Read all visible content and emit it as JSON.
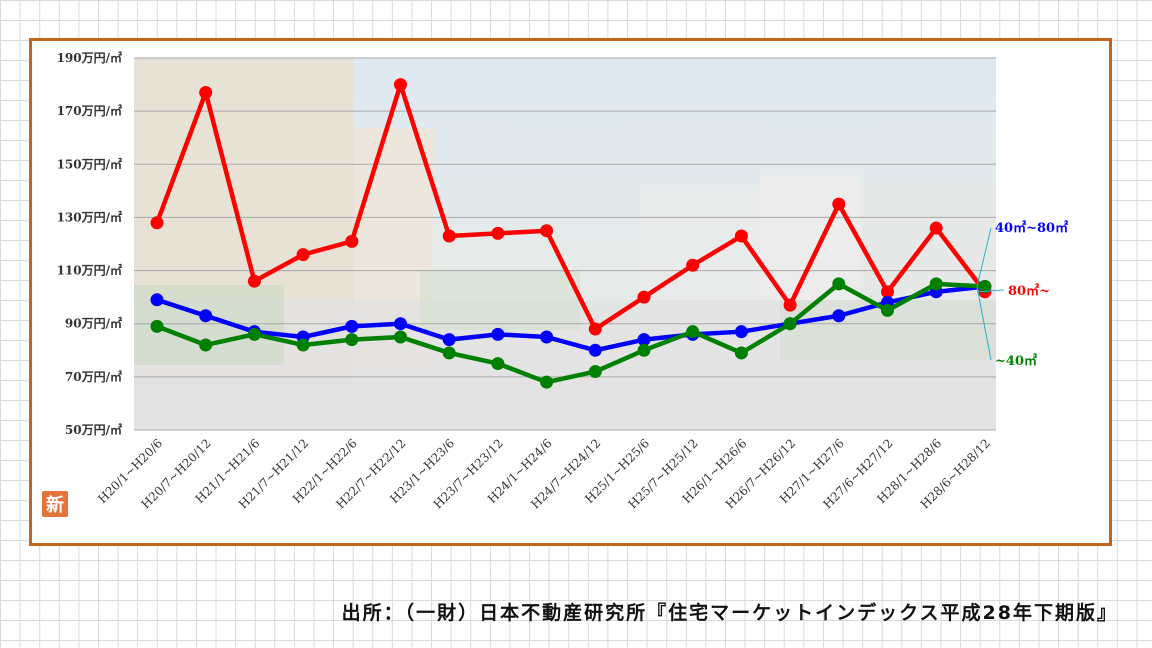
{
  "chart_data": {
    "type": "line",
    "title": "",
    "xlabel": "",
    "ylabel": "",
    "ylim": [
      50,
      190
    ],
    "yticks": [
      50,
      70,
      90,
      110,
      130,
      150,
      170,
      190
    ],
    "ytick_labels": [
      "50万円/㎡",
      "70万円/㎡",
      "90万円/㎡",
      "110万円/㎡",
      "130万円/㎡",
      "150万円/㎡",
      "170万円/㎡",
      "190万円/㎡"
    ],
    "grid": "horizontal",
    "categories": [
      "H20/1~H20/6",
      "H20/7~H20/12",
      "H21/1~H21/6",
      "H21/7~H21/12",
      "H22/1~H22/6",
      "H22/7~H22/12",
      "H23/1~H23/6",
      "H23/7~H23/12",
      "H24/1~H24/6",
      "H24/7~H24/12",
      "H25/1~H25/6",
      "H25/7~H25/12",
      "H26/1~H26/6",
      "H26/7~H26/12",
      "H27/1~H27/6",
      "H27/6~H27/12",
      "H28/1~H28/6",
      "H28/6~H28/12"
    ],
    "series": [
      {
        "name": "80㎡~",
        "color": "#ff0000",
        "values": [
          128,
          177,
          106,
          116,
          121,
          180,
          123,
          124,
          125,
          88,
          100,
          112,
          123,
          97,
          135,
          102,
          126,
          102
        ]
      },
      {
        "name": "40㎡~80㎡",
        "color": "#0000ff",
        "values": [
          99,
          93,
          87,
          85,
          89,
          90,
          84,
          86,
          85,
          80,
          84,
          86,
          87,
          90,
          93,
          98,
          102,
          104
        ]
      },
      {
        "name": "~40㎡",
        "color": "#008000",
        "values": [
          89,
          82,
          86,
          82,
          84,
          85,
          79,
          75,
          68,
          72,
          80,
          87,
          79,
          90,
          105,
          95,
          105,
          104
        ]
      }
    ]
  },
  "badge": "新",
  "source": "出所：（一財）日本不動産研究所『住宅マーケットインデックス平成28年下期版』"
}
